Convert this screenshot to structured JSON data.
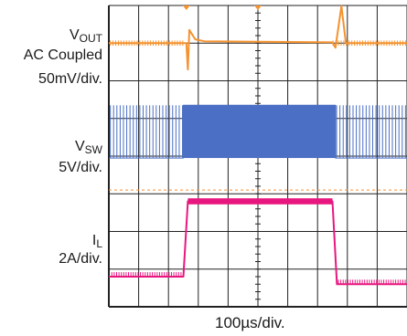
{
  "chart_data": {
    "type": "line",
    "title": "",
    "xlabel": "100µs/div.",
    "x_divisions": 10,
    "y_divisions": 8,
    "grid": true,
    "series": [
      {
        "name_main": "V",
        "name_sub": "OUT",
        "coupling": "AC Coupled",
        "scale": "50mV/div.",
        "color": "#f5922e",
        "points": [
          [
            0,
            0
          ],
          [
            2.6,
            0
          ],
          [
            2.65,
            -0.7
          ],
          [
            2.7,
            0.35
          ],
          [
            2.9,
            0.1
          ],
          [
            3.2,
            0.05
          ],
          [
            7.5,
            0.02
          ],
          [
            7.6,
            -0.12
          ],
          [
            7.8,
            0.98
          ],
          [
            7.95,
            0.0
          ],
          [
            10,
            0
          ]
        ]
      },
      {
        "name_main": "V",
        "name_sub": "SW",
        "scale": "5V/div.",
        "color": "#4a6fc4",
        "points": [
          [
            0,
            0
          ],
          [
            2.5,
            0
          ],
          [
            2.5,
            1.4
          ],
          [
            7.6,
            1.4
          ],
          [
            7.6,
            0
          ],
          [
            10,
            0
          ]
        ]
      },
      {
        "name_main": "I",
        "name_sub": "L",
        "scale": "2A/div.",
        "color": "#e8177f",
        "points": [
          [
            0,
            0
          ],
          [
            2.5,
            0
          ],
          [
            2.65,
            2.0
          ],
          [
            7.5,
            2.0
          ],
          [
            7.65,
            -0.2
          ],
          [
            10,
            -0.2
          ]
        ]
      }
    ]
  }
}
